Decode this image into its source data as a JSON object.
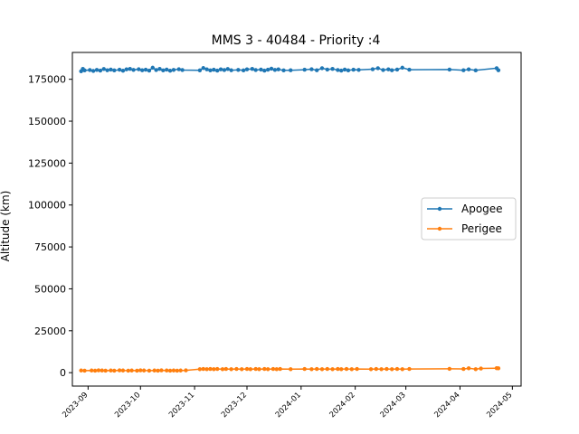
{
  "chart_data": {
    "type": "line",
    "title": "MMS 3 - 40484 - Priority :4",
    "xlabel": "",
    "ylabel": "Altitude (km)",
    "ylim": [
      -8000,
      191000
    ],
    "xlim": [
      "2023-08-23",
      "2024-05-06"
    ],
    "yticks": [
      0,
      25000,
      50000,
      75000,
      100000,
      125000,
      150000,
      175000
    ],
    "xticks": [
      "2023-09",
      "2023-10",
      "2023-11",
      "2023-12",
      "2024-01",
      "2024-02",
      "2024-03",
      "2024-04",
      "2024-05"
    ],
    "legend_position": "center-right",
    "grid": false,
    "series": [
      {
        "name": "Apogee",
        "color": "#1f77b4",
        "points": [
          [
            "2023-08-28",
            179800
          ],
          [
            "2023-08-29",
            181200
          ],
          [
            "2023-08-30",
            180300
          ],
          [
            "2023-09-02",
            180500
          ],
          [
            "2023-09-04",
            180000
          ],
          [
            "2023-09-06",
            180600
          ],
          [
            "2023-09-08",
            180200
          ],
          [
            "2023-09-10",
            181100
          ],
          [
            "2023-09-12",
            180400
          ],
          [
            "2023-09-14",
            180800
          ],
          [
            "2023-09-16",
            180300
          ],
          [
            "2023-09-19",
            180700
          ],
          [
            "2023-09-21",
            180100
          ],
          [
            "2023-09-23",
            180900
          ],
          [
            "2023-09-25",
            181200
          ],
          [
            "2023-09-27",
            180600
          ],
          [
            "2023-09-30",
            181000
          ],
          [
            "2023-10-02",
            180400
          ],
          [
            "2023-10-04",
            180700
          ],
          [
            "2023-10-06",
            180200
          ],
          [
            "2023-10-08",
            181900
          ],
          [
            "2023-10-10",
            180500
          ],
          [
            "2023-10-12",
            181200
          ],
          [
            "2023-10-14",
            180300
          ],
          [
            "2023-10-16",
            180800
          ],
          [
            "2023-10-18",
            180100
          ],
          [
            "2023-10-20",
            180600
          ],
          [
            "2023-10-23",
            181000
          ],
          [
            "2023-10-25",
            180500
          ],
          [
            "2023-11-04",
            180300
          ],
          [
            "2023-11-06",
            181700
          ],
          [
            "2023-11-08",
            180900
          ],
          [
            "2023-11-10",
            180300
          ],
          [
            "2023-11-12",
            180700
          ],
          [
            "2023-11-14",
            180200
          ],
          [
            "2023-11-16",
            180900
          ],
          [
            "2023-11-18",
            180500
          ],
          [
            "2023-11-20",
            181100
          ],
          [
            "2023-11-22",
            180400
          ],
          [
            "2023-11-26",
            180600
          ],
          [
            "2023-11-29",
            180300
          ],
          [
            "2023-12-01",
            180900
          ],
          [
            "2023-12-04",
            181200
          ],
          [
            "2023-12-06",
            180500
          ],
          [
            "2023-12-09",
            180800
          ],
          [
            "2023-12-11",
            180200
          ],
          [
            "2023-12-13",
            180700
          ],
          [
            "2023-12-15",
            181300
          ],
          [
            "2023-12-17",
            180600
          ],
          [
            "2023-12-19",
            180900
          ],
          [
            "2023-12-22",
            180300
          ],
          [
            "2023-12-26",
            180400
          ],
          [
            "2024-01-03",
            180700
          ],
          [
            "2024-01-07",
            181000
          ],
          [
            "2024-01-10",
            180400
          ],
          [
            "2024-01-13",
            181600
          ],
          [
            "2024-01-16",
            180800
          ],
          [
            "2024-01-19",
            181200
          ],
          [
            "2024-01-22",
            180500
          ],
          [
            "2024-01-24",
            180200
          ],
          [
            "2024-01-26",
            180800
          ],
          [
            "2024-01-28",
            180300
          ],
          [
            "2024-01-31",
            180700
          ],
          [
            "2024-02-03",
            180600
          ],
          [
            "2024-02-11",
            181000
          ],
          [
            "2024-02-14",
            181600
          ],
          [
            "2024-02-17",
            180500
          ],
          [
            "2024-02-20",
            180900
          ],
          [
            "2024-02-22",
            180400
          ],
          [
            "2024-02-25",
            180800
          ],
          [
            "2024-02-28",
            181900
          ],
          [
            "2024-03-03",
            180700
          ],
          [
            "2024-03-26",
            180800
          ],
          [
            "2024-04-03",
            180400
          ],
          [
            "2024-04-06",
            180900
          ],
          [
            "2024-04-10",
            180300
          ],
          [
            "2024-04-22",
            181600
          ],
          [
            "2024-04-23",
            180400
          ]
        ]
      },
      {
        "name": "Perigee",
        "color": "#ff7f0e",
        "points": [
          [
            "2023-08-28",
            1300
          ],
          [
            "2023-08-30",
            1200
          ],
          [
            "2023-09-03",
            1300
          ],
          [
            "2023-09-05",
            1200
          ],
          [
            "2023-09-07",
            1400
          ],
          [
            "2023-09-09",
            1300
          ],
          [
            "2023-09-11",
            1200
          ],
          [
            "2023-09-14",
            1300
          ],
          [
            "2023-09-16",
            1200
          ],
          [
            "2023-09-19",
            1400
          ],
          [
            "2023-09-21",
            1300
          ],
          [
            "2023-09-24",
            1200
          ],
          [
            "2023-09-26",
            1300
          ],
          [
            "2023-09-29",
            1200
          ],
          [
            "2023-10-01",
            1400
          ],
          [
            "2023-10-03",
            1300
          ],
          [
            "2023-10-06",
            1200
          ],
          [
            "2023-10-09",
            1300
          ],
          [
            "2023-10-11",
            1200
          ],
          [
            "2023-10-13",
            1400
          ],
          [
            "2023-10-16",
            1300
          ],
          [
            "2023-10-18",
            1200
          ],
          [
            "2023-10-20",
            1300
          ],
          [
            "2023-10-22",
            1200
          ],
          [
            "2023-10-24",
            1300
          ],
          [
            "2023-10-27",
            1400
          ],
          [
            "2023-11-04",
            2100
          ],
          [
            "2023-11-06",
            2200
          ],
          [
            "2023-11-08",
            2100
          ],
          [
            "2023-11-10",
            2200
          ],
          [
            "2023-11-12",
            2100
          ],
          [
            "2023-11-14",
            2200
          ],
          [
            "2023-11-17",
            2100
          ],
          [
            "2023-11-19",
            2200
          ],
          [
            "2023-11-22",
            2100
          ],
          [
            "2023-11-25",
            2200
          ],
          [
            "2023-11-28",
            2100
          ],
          [
            "2023-12-01",
            2200
          ],
          [
            "2023-12-03",
            2100
          ],
          [
            "2023-12-06",
            2200
          ],
          [
            "2023-12-08",
            2100
          ],
          [
            "2023-12-11",
            2200
          ],
          [
            "2023-12-13",
            2100
          ],
          [
            "2023-12-16",
            2200
          ],
          [
            "2023-12-18",
            2100
          ],
          [
            "2023-12-20",
            2200
          ],
          [
            "2023-12-26",
            2100
          ],
          [
            "2024-01-03",
            2200
          ],
          [
            "2024-01-07",
            2100
          ],
          [
            "2024-01-10",
            2200
          ],
          [
            "2024-01-13",
            2100
          ],
          [
            "2024-01-16",
            2200
          ],
          [
            "2024-01-19",
            2100
          ],
          [
            "2024-01-22",
            2200
          ],
          [
            "2024-01-24",
            2100
          ],
          [
            "2024-01-27",
            2200
          ],
          [
            "2024-01-30",
            2100
          ],
          [
            "2024-02-02",
            2200
          ],
          [
            "2024-02-10",
            2100
          ],
          [
            "2024-02-13",
            2200
          ],
          [
            "2024-02-16",
            2100
          ],
          [
            "2024-02-19",
            2200
          ],
          [
            "2024-02-22",
            2100
          ],
          [
            "2024-02-25",
            2200
          ],
          [
            "2024-02-28",
            2100
          ],
          [
            "2024-03-03",
            2200
          ],
          [
            "2024-03-26",
            2300
          ],
          [
            "2024-04-03",
            2200
          ],
          [
            "2024-04-06",
            2600
          ],
          [
            "2024-04-10",
            2100
          ],
          [
            "2024-04-13",
            2500
          ],
          [
            "2024-04-22",
            2700
          ],
          [
            "2024-04-23",
            2600
          ]
        ]
      }
    ]
  }
}
